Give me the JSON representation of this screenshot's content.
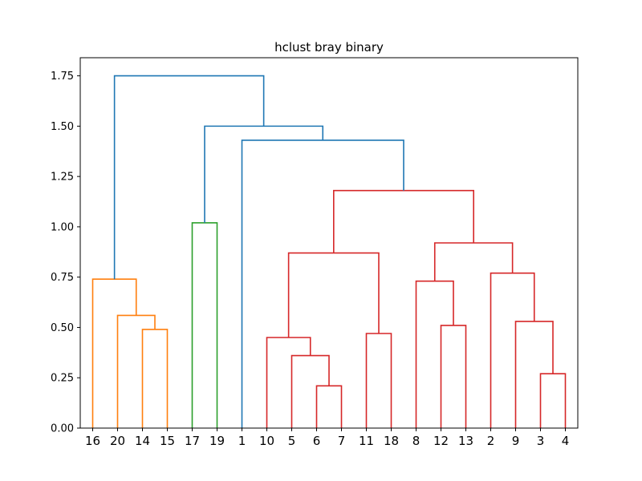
{
  "chart_data": {
    "type": "dendrogram",
    "title": "hclust bray binary",
    "xlabel": "",
    "ylabel": "",
    "ylim": [
      0,
      1.84
    ],
    "y_ticks": [
      "0.00",
      "0.25",
      "0.50",
      "0.75",
      "1.00",
      "1.25",
      "1.50",
      "1.75"
    ],
    "y_tick_values": [
      0,
      0.25,
      0.5,
      0.75,
      1.0,
      1.25,
      1.5,
      1.75
    ],
    "leaves": [
      "16",
      "20",
      "14",
      "15",
      "17",
      "19",
      "1",
      "10",
      "5",
      "6",
      "7",
      "11",
      "18",
      "8",
      "12",
      "13",
      "2",
      "9",
      "3",
      "4"
    ],
    "grid": false,
    "colors": {
      "orange": "#ff7f0e",
      "green": "#2ca02c",
      "red": "#d62728",
      "blue": "#1f77b4"
    },
    "merges": [
      {
        "left": "leaf:2",
        "right": "leaf:3",
        "height": 0.49,
        "color": "orange"
      },
      {
        "left": "leaf:1",
        "right": "node:0",
        "height": 0.56,
        "color": "orange"
      },
      {
        "left": "leaf:0",
        "right": "node:1",
        "height": 0.74,
        "color": "orange"
      },
      {
        "left": "leaf:4",
        "right": "leaf:5",
        "height": 1.02,
        "color": "green"
      },
      {
        "left": "leaf:9",
        "right": "leaf:10",
        "height": 0.21,
        "color": "red"
      },
      {
        "left": "leaf:8",
        "right": "node:4",
        "height": 0.36,
        "color": "red"
      },
      {
        "left": "leaf:7",
        "right": "node:5",
        "height": 0.45,
        "color": "red"
      },
      {
        "left": "leaf:11",
        "right": "leaf:12",
        "height": 0.47,
        "color": "red"
      },
      {
        "left": "node:6",
        "right": "node:7",
        "height": 0.87,
        "color": "red"
      },
      {
        "left": "leaf:14",
        "right": "leaf:15",
        "height": 0.51,
        "color": "red"
      },
      {
        "left": "leaf:13",
        "right": "node:9",
        "height": 0.73,
        "color": "red"
      },
      {
        "left": "leaf:18",
        "right": "leaf:19",
        "height": 0.27,
        "color": "red"
      },
      {
        "left": "leaf:17",
        "right": "node:11",
        "height": 0.53,
        "color": "red"
      },
      {
        "left": "leaf:16",
        "right": "node:12",
        "height": 0.77,
        "color": "red"
      },
      {
        "left": "node:10",
        "right": "node:13",
        "height": 0.92,
        "color": "red"
      },
      {
        "left": "node:8",
        "right": "node:14",
        "height": 1.18,
        "color": "red"
      },
      {
        "left": "leaf:6",
        "right": "node:15",
        "height": 1.43,
        "color": "blue"
      },
      {
        "left": "node:3",
        "right": "node:16",
        "height": 1.5,
        "color": "blue"
      },
      {
        "left": "node:2",
        "right": "node:17",
        "height": 1.75,
        "color": "blue"
      }
    ]
  }
}
